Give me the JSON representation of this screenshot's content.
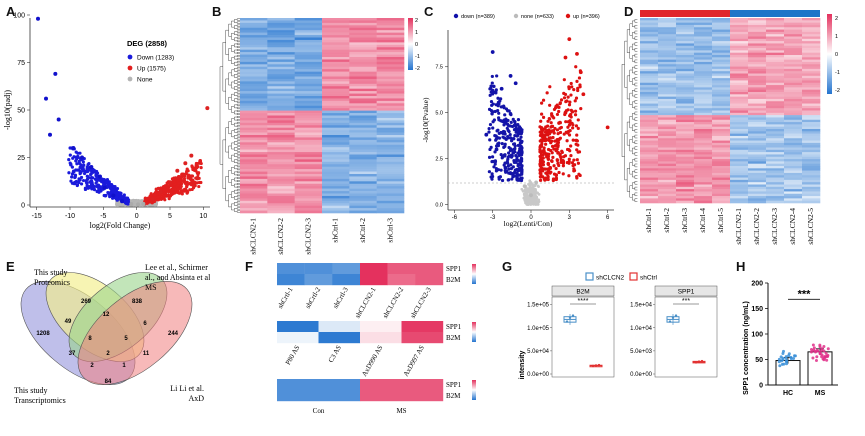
{
  "panels": {
    "A": {
      "label": "A",
      "legend_title": "DEG (2858)",
      "legend": [
        "Down (1283)",
        "Up (1575)",
        "None"
      ],
      "xlabel": "log2(Fold Change)",
      "ylabel": "-log10(padj)",
      "xticks": [
        "-15",
        "-10",
        "-5",
        "0",
        "5",
        "10"
      ],
      "yticks": [
        "0",
        "25",
        "50",
        "75",
        "100"
      ]
    },
    "B": {
      "label": "B",
      "cols": [
        "shCLCN2-1",
        "shCLCN2-2",
        "shCLCN2-3",
        "shCtrl-1",
        "shCtrl-2",
        "shCtrl-3"
      ],
      "scale_ticks": [
        "2",
        "1",
        "0",
        "-1",
        "-2"
      ]
    },
    "C": {
      "label": "C",
      "legend": [
        "down (n=389)",
        "none (n=633)",
        "up (n=396)"
      ],
      "xlabel": "log2(Lenti/Con)",
      "ylabel": "-log10(Pvalue)",
      "xticks": [
        "-6",
        "-3",
        "0",
        "3",
        "6"
      ],
      "yticks": [
        "0.0",
        "2.5",
        "5.0",
        "7.5"
      ]
    },
    "D": {
      "label": "D",
      "cols": [
        "shCtrl-1",
        "shCtrl-2",
        "shCtrl-3",
        "shCtrl-4",
        "shCtrl-5",
        "shCLCN2-1",
        "shCLCN2-2",
        "shCLCN2-3",
        "shCLCN2-4",
        "shCLCN2-5"
      ],
      "scale_ticks": [
        "2",
        "1",
        "0",
        "-1",
        "-2"
      ]
    },
    "E": {
      "label": "E",
      "sets": [
        "This study Proteomics",
        "Lee et al., Schirmer et al., and Absinta et al. MS",
        "This study Transcriptomics",
        "Li Li et al. AxD"
      ],
      "set_lines": [
        [
          "This study",
          "Proteomics"
        ],
        [
          "Lee et al., Schirmer et",
          "al., and Absinta et al.",
          "MS"
        ],
        [
          "This study",
          "Transcriptomics"
        ],
        [
          "Li Li  et al.",
          "AxD"
        ]
      ],
      "numbers": [
        "269",
        "1208",
        "838",
        "244",
        "49",
        "12",
        "6",
        "37",
        "8",
        "2",
        "5",
        "11",
        "2",
        "84",
        "1"
      ]
    },
    "F": {
      "label": "F",
      "rows": [
        "SPP1",
        "B2M"
      ],
      "heat1_cols": [
        "shCrtl-1",
        "shCrtl-2",
        "shCrtl-3",
        "shCLCN2-1",
        "shCLCN2-2",
        "shCLCN2-3"
      ],
      "heat2_cols": [
        "P80 AS",
        "C3 AS",
        "AxD990 AS",
        "AxD997 AS"
      ],
      "heat3_cols": [
        "Con",
        "MS"
      ]
    },
    "G": {
      "label": "G",
      "legend": [
        "shCLCN2",
        "shCtrl"
      ],
      "ylabel": "intensity",
      "facets": [
        "B2M",
        "SPP1"
      ],
      "b2m_yticks": [
        "1.5e+05",
        "1.0e+05",
        "5.0e+04",
        "0.0e+00"
      ],
      "spp1_yticks": [
        "1.5e+04",
        "1.0e+04",
        "5.0e+03",
        "0.0e+00"
      ],
      "b2m_sig": "****",
      "spp1_sig": "***"
    },
    "H": {
      "label": "H",
      "ylabel": "SPP1 concentration (ng/mL)",
      "categories": [
        "HC",
        "MS"
      ],
      "yticks": [
        "0",
        "50",
        "100",
        "150",
        "200"
      ],
      "sig": "***"
    }
  },
  "chart_data": [
    {
      "type": "scatter",
      "title": "",
      "xlabel": "log2(Fold Change)",
      "ylabel": "-log10(padj)",
      "xlim": [
        -16,
        11
      ],
      "ylim": [
        0,
        100
      ],
      "series": [
        {
          "name": "Down (1283)",
          "color": "#1111cc",
          "points": [
            [
              -14.8,
              98
            ],
            [
              -13.6,
              56
            ],
            [
              -12.2,
              69
            ],
            [
              -11.7,
              45
            ],
            [
              -13.0,
              37
            ],
            [
              -9.5,
              30
            ],
            [
              -8.2,
              25
            ],
            [
              -6.8,
              20
            ],
            [
              -5.5,
              15
            ],
            [
              -4.8,
              9
            ],
            [
              -3.5,
              5
            ],
            [
              -2.2,
              2
            ]
          ]
        },
        {
          "name": "Up (1575)",
          "color": "#dd2222",
          "points": [
            [
              10.6,
              51
            ],
            [
              8.2,
              26
            ],
            [
              7.3,
              22
            ],
            [
              6.1,
              18
            ],
            [
              5.0,
              12
            ],
            [
              3.6,
              7
            ],
            [
              2.4,
              3
            ],
            [
              9.1,
              14
            ]
          ]
        },
        {
          "name": "None",
          "color": "#aaaaaa",
          "points": [
            [
              0.2,
              0.3
            ],
            [
              -0.8,
              0.5
            ],
            [
              1.0,
              0.6
            ]
          ]
        }
      ]
    },
    {
      "type": "heatmap",
      "title": "",
      "columns": [
        "shCLCN2-1",
        "shCLCN2-2",
        "shCLCN2-3",
        "shCtrl-1",
        "shCtrl-2",
        "shCtrl-3"
      ],
      "range": [
        -2,
        2
      ]
    },
    {
      "type": "scatter",
      "title": "",
      "xlabel": "log2(Lenti/Con)",
      "ylabel": "-log10(Pvalue)",
      "xlim": [
        -6.5,
        6.5
      ],
      "ylim": [
        -0.3,
        9.5
      ],
      "series": [
        {
          "name": "down (n=389)",
          "color": "#1111aa",
          "points": [
            [
              -3.0,
              8.3
            ],
            [
              -1.6,
              7.0
            ],
            [
              -1.2,
              6.6
            ],
            [
              -2.3,
              6.3
            ],
            [
              -2.0,
              4.5
            ],
            [
              -3.5,
              3.8
            ],
            [
              -2.7,
              3.0
            ],
            [
              -2.0,
              2.0
            ]
          ]
        },
        {
          "name": "none (n=633)",
          "color": "#bbbbbb",
          "points": [
            [
              0.0,
              0.5
            ],
            [
              0.4,
              1.2
            ],
            [
              -0.5,
              1.0
            ]
          ]
        },
        {
          "name": "up (n=396)",
          "color": "#dd1111",
          "points": [
            [
              3.0,
              9.0
            ],
            [
              3.6,
              8.2
            ],
            [
              2.7,
              8.0
            ],
            [
              3.9,
              7.2
            ],
            [
              6.0,
              4.2
            ],
            [
              4.1,
              6.0
            ],
            [
              2.7,
              5.0
            ],
            [
              2.0,
              3.0
            ],
            [
              1.5,
              2.0
            ]
          ]
        }
      ]
    },
    {
      "type": "heatmap",
      "title": "",
      "columns": [
        "shCtrl-1",
        "shCtrl-2",
        "shCtrl-3",
        "shCtrl-4",
        "shCtrl-5",
        "shCLCN2-1",
        "shCLCN2-2",
        "shCLCN2-3",
        "shCLCN2-4",
        "shCLCN2-5"
      ],
      "range": [
        -2,
        2
      ]
    },
    {
      "type": "heatmap",
      "title": "",
      "rows": [
        "SPP1",
        "B2M"
      ],
      "columns": [
        "shCrtl-1",
        "shCrtl-2",
        "shCrtl-3",
        "shCLCN2-1",
        "shCLCN2-2",
        "shCLCN2-3"
      ],
      "values": [
        [
          -1.0,
          -1.0,
          -0.9,
          1.4,
          1.0,
          1.0
        ],
        [
          -1.1,
          -0.9,
          -1.1,
          1.3,
          0.9,
          1.0
        ]
      ]
    },
    {
      "type": "heatmap",
      "title": "",
      "rows": [
        "SPP1",
        "B2M"
      ],
      "columns": [
        "P80 AS",
        "C3 AS",
        "AxD990 AS",
        "AxD997 AS"
      ],
      "values": [
        [
          -1.2,
          -0.2,
          0.1,
          1.2
        ],
        [
          -0.1,
          -1.2,
          0.2,
          1.1
        ]
      ]
    },
    {
      "type": "heatmap",
      "title": "",
      "rows": [
        "SPP1",
        "B2M"
      ],
      "columns": [
        "Con",
        "MS"
      ],
      "values": [
        [
          -1.0,
          1.0
        ],
        [
          -1.0,
          1.0
        ]
      ]
    },
    {
      "type": "bar",
      "title": "B2M",
      "ylabel": "intensity",
      "categories": [
        "shCLCN2",
        "shCtrl"
      ],
      "values": [
        118000,
        18000
      ],
      "ylim": [
        0,
        160000
      ]
    },
    {
      "type": "bar",
      "title": "SPP1",
      "ylabel": "intensity",
      "categories": [
        "shCLCN2",
        "shCtrl"
      ],
      "values": [
        11800,
        2600
      ],
      "ylim": [
        0,
        16000
      ]
    },
    {
      "type": "bar",
      "title": "",
      "ylabel": "SPP1 concentration (ng/mL)",
      "categories": [
        "HC",
        "MS"
      ],
      "values": [
        48,
        65
      ],
      "ylim": [
        0,
        200
      ]
    }
  ],
  "colors": {
    "down": "#1a1adb",
    "up": "#e21f1f",
    "none": "#b5b5b5",
    "heat_low": "#2c7bdc",
    "heat_high": "#e44b6c",
    "venn_yellow": "#f2ee8a",
    "venn_green": "#9ad38a",
    "venn_blue": "#8a8ad8",
    "venn_red": "#f08080",
    "box_blue": "#4a90c8",
    "box_red": "#e23232",
    "h_blue": "#3a8fd8",
    "h_pink": "#e0308a"
  }
}
